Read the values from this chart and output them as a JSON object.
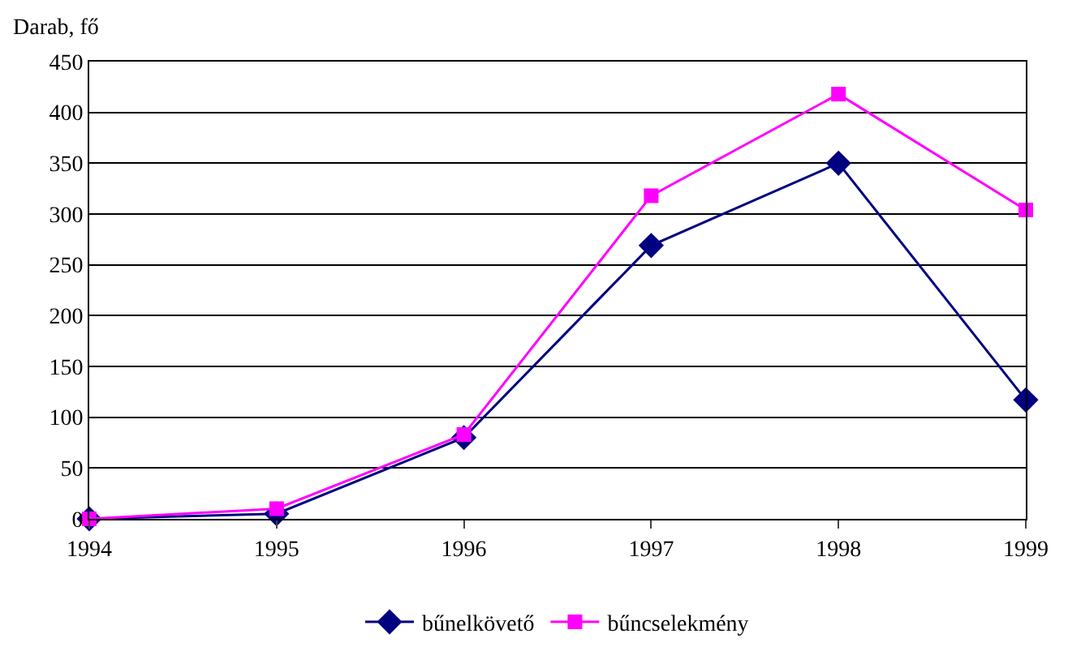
{
  "chart_data": {
    "type": "line",
    "ylabel": "Darab, fő",
    "x": [
      1994,
      1995,
      1996,
      1997,
      1998,
      1999
    ],
    "series": [
      {
        "name": "bűnelkövető",
        "color": "#000080",
        "marker": "diamond",
        "values": [
          0,
          5,
          80,
          269,
          350,
          117
        ]
      },
      {
        "name": "bűncselekmény",
        "color": "#ff00ff",
        "marker": "square",
        "values": [
          0,
          10,
          83,
          318,
          418,
          304
        ]
      }
    ],
    "xlim": [
      1994,
      1999
    ],
    "xticks": [
      1994,
      1995,
      1996,
      1997,
      1998,
      1999
    ],
    "ylim": [
      0,
      450
    ],
    "yticks": [
      0,
      50,
      100,
      150,
      200,
      250,
      300,
      350,
      400,
      450
    ],
    "grid": "y",
    "legend": "bottom",
    "line_style": "solid"
  }
}
